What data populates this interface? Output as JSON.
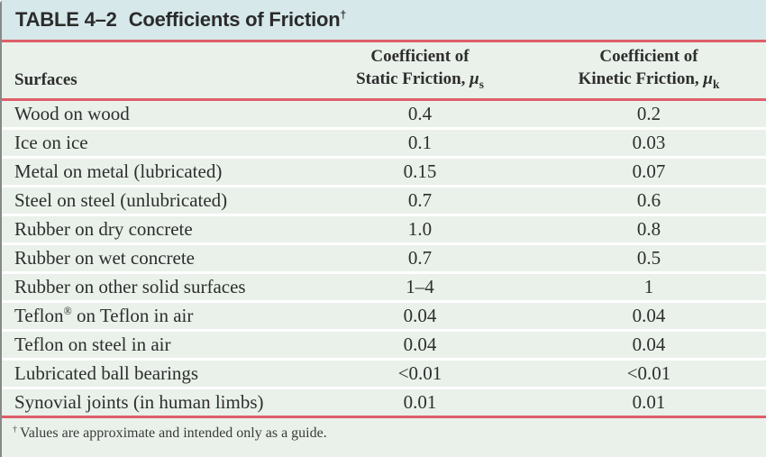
{
  "colors": {
    "header_bg": "#d6e8ea",
    "row_bg": "#e9f1ea",
    "rule": "#dd5f6a",
    "text": "#2e2e2e"
  },
  "chart_data": {
    "type": "table",
    "title": "TABLE 4–2",
    "title_rest": "Coefficients of Friction",
    "title_dagger": "†",
    "columns": {
      "surfaces": "Surfaces",
      "static_line1": "Coefficient of",
      "static_line2": "Static Friction,",
      "static_symbol": "μ",
      "static_symbol_sub": "s",
      "kinetic_line1": "Coefficient of",
      "kinetic_line2": "Kinetic Friction,",
      "kinetic_symbol": "μ",
      "kinetic_symbol_sub": "k"
    },
    "rows": [
      {
        "surface": "Wood on wood",
        "surface_sup": "",
        "surface_rest": "",
        "static": "0.4",
        "kinetic": "0.2"
      },
      {
        "surface": "Ice on ice",
        "surface_sup": "",
        "surface_rest": "",
        "static": "0.1",
        "kinetic": "0.03"
      },
      {
        "surface": "Metal on metal (lubricated)",
        "surface_sup": "",
        "surface_rest": "",
        "static": "0.15",
        "kinetic": "0.07"
      },
      {
        "surface": "Steel on steel (unlubricated)",
        "surface_sup": "",
        "surface_rest": "",
        "static": "0.7",
        "kinetic": "0.6"
      },
      {
        "surface": "Rubber on dry concrete",
        "surface_sup": "",
        "surface_rest": "",
        "static": "1.0",
        "kinetic": "0.8"
      },
      {
        "surface": "Rubber on wet concrete",
        "surface_sup": "",
        "surface_rest": "",
        "static": "0.7",
        "kinetic": "0.5"
      },
      {
        "surface": "Rubber on other solid surfaces",
        "surface_sup": "",
        "surface_rest": "",
        "static": "1–4",
        "kinetic": "1"
      },
      {
        "surface": "Teflon",
        "surface_sup": "®",
        "surface_rest": " on Teflon in air",
        "static": "0.04",
        "kinetic": "0.04"
      },
      {
        "surface": "Teflon on steel in air",
        "surface_sup": "",
        "surface_rest": "",
        "static": "0.04",
        "kinetic": "0.04"
      },
      {
        "surface": "Lubricated ball bearings",
        "surface_sup": "",
        "surface_rest": "",
        "static": "<0.01",
        "kinetic": "<0.01"
      },
      {
        "surface": "Synovial joints (in human limbs)",
        "surface_sup": "",
        "surface_rest": "",
        "static": "0.01",
        "kinetic": "0.01"
      }
    ],
    "footnote_dagger": "†",
    "footnote": "Values are approximate and intended only as a guide."
  }
}
